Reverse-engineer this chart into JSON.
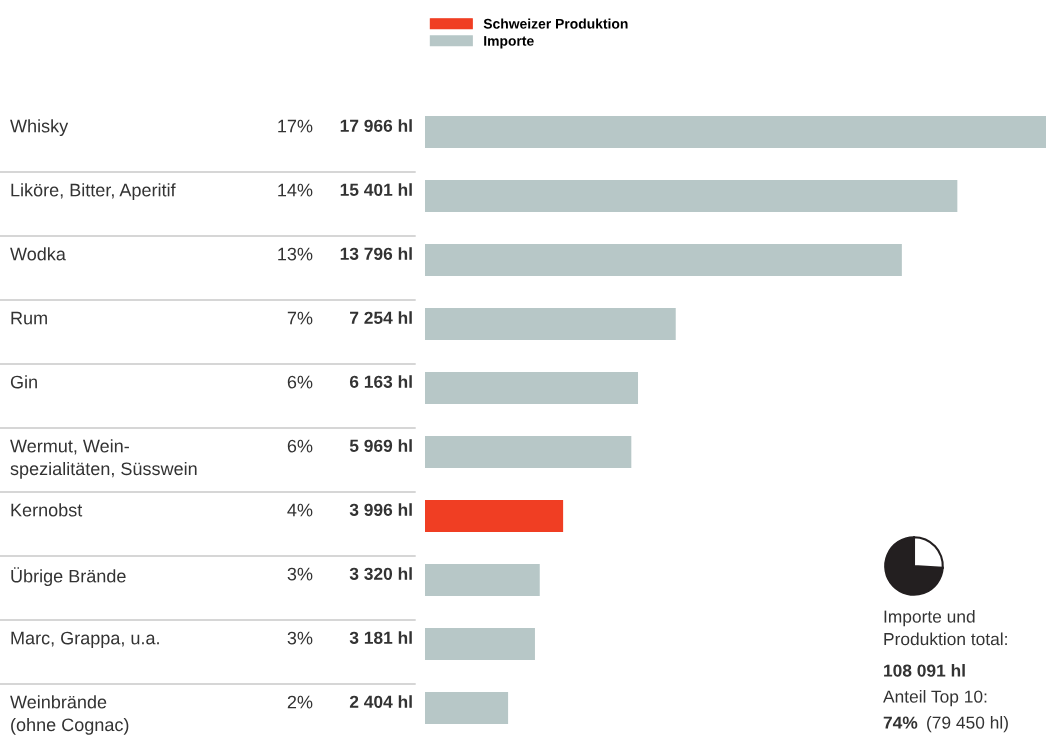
{
  "chart_data": [
    {
      "type": "bar",
      "orientation": "horizontal",
      "legend": "top",
      "categories": [
        "Whisky",
        "Liköre, Bitter, Aperitif",
        "Wodka",
        "Rum",
        "Gin",
        "Wermut, Wein-\nspezialitäten, Süsswein",
        "Kernobst",
        "Übrige Brände",
        "Marc, Grappa, u.a.",
        "Weinbrände\n(ohne Cognac)"
      ],
      "series": [
        {
          "name": "Schweizer Produktion",
          "color": "#f03e23",
          "values": [
            null,
            null,
            null,
            null,
            null,
            null,
            3996,
            null,
            null,
            null
          ],
          "value_labels": [
            null,
            null,
            null,
            null,
            null,
            null,
            "3 996 hl",
            null,
            null,
            null
          ]
        },
        {
          "name": "Importe",
          "color": "#b7c7c7",
          "values": [
            17966,
            15401,
            13796,
            7254,
            6163,
            5969,
            null,
            3320,
            3181,
            2404
          ],
          "value_labels": [
            "17 966 hl",
            "15 401 hl",
            "13 796 hl",
            "7 254 hl",
            "6 163 hl",
            "5 969 hl",
            null,
            "3 320 hl",
            "3 181 hl",
            "2 404 hl"
          ]
        }
      ],
      "annotations": [
        "17%",
        "14%",
        "13%",
        "7%",
        "6%",
        "6%",
        "4%",
        "3%",
        "3%",
        "2%"
      ]
    },
    {
      "type": "pie",
      "categories": [
        null,
        null
      ],
      "values": [
        74,
        26
      ],
      "colors": [
        "#231f20",
        "#ffffff"
      ],
      "annotations": [
        "Importe und\nProduktion total:",
        "108 091 hl",
        "Anteil Top 10:",
        "74%",
        "(79 450 hl)"
      ]
    }
  ]
}
